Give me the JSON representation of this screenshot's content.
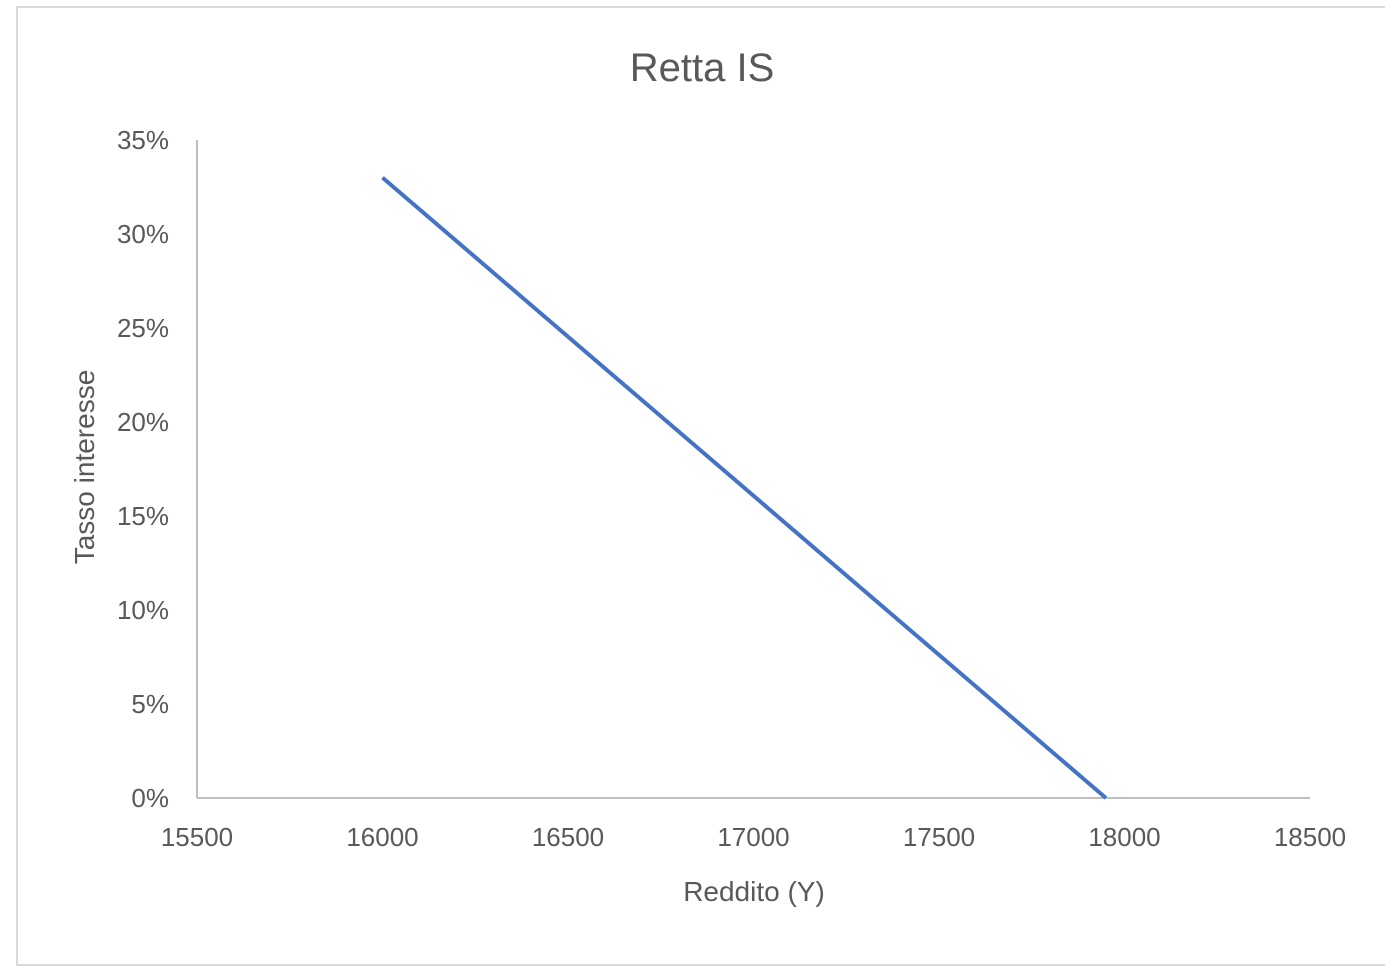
{
  "chart_data": {
    "type": "line",
    "title": "Retta IS",
    "xlabel": "Reddito (Y)",
    "ylabel": "Tasso interesse",
    "xlim": [
      15500,
      18500
    ],
    "ylim": [
      0,
      0.35
    ],
    "x_ticks": [
      "15500",
      "16000",
      "16500",
      "17000",
      "17500",
      "18000",
      "18500"
    ],
    "y_ticks": [
      "0%",
      "5%",
      "10%",
      "15%",
      "20%",
      "25%",
      "30%",
      "35%"
    ],
    "grid": false,
    "legend": "none",
    "series": [
      {
        "color": "#4472c4",
        "points": [
          {
            "x": 16000,
            "y": 0.33
          },
          {
            "x": 17950,
            "y": 0.0
          }
        ]
      }
    ]
  }
}
